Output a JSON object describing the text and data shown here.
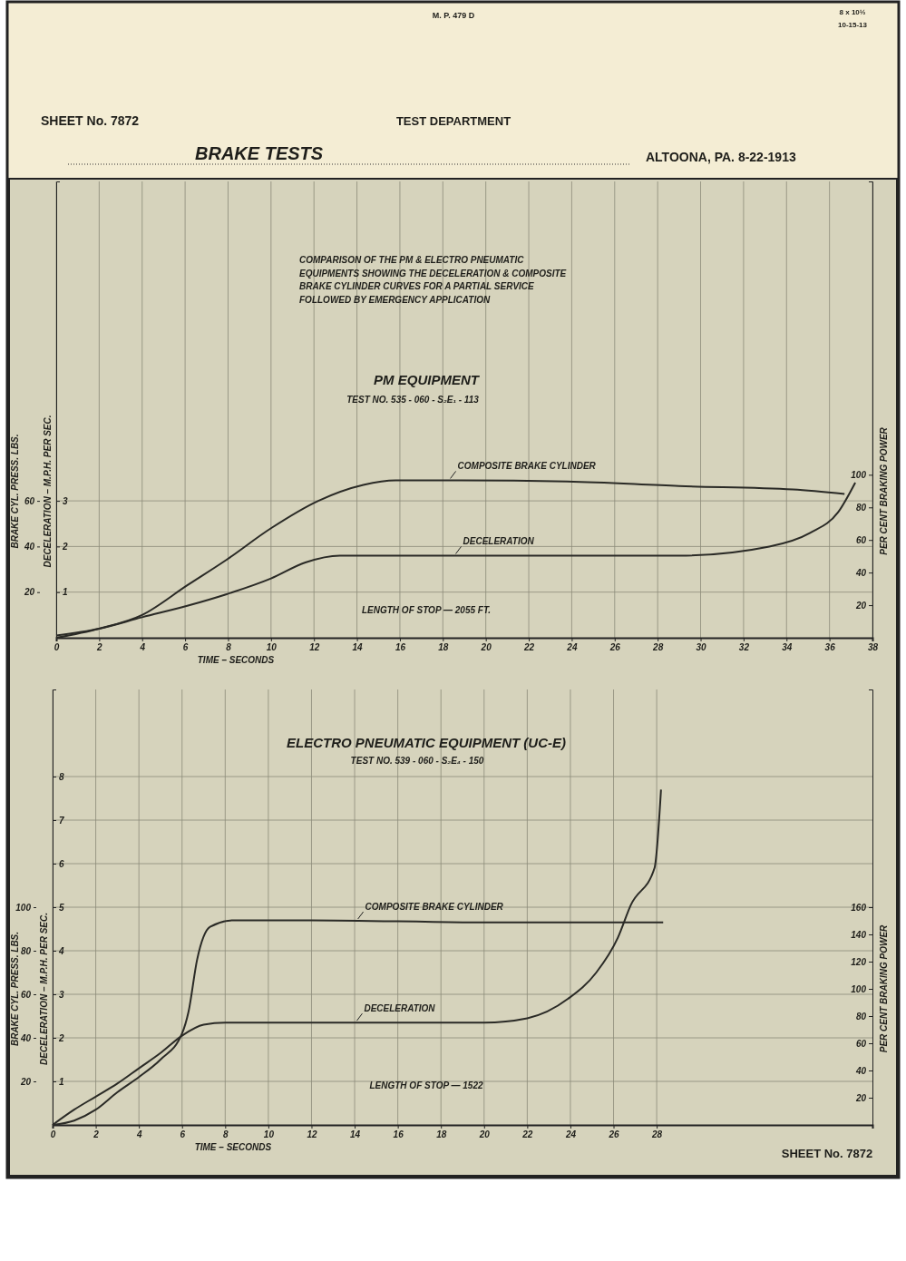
{
  "chart_data": [
    {
      "type": "line",
      "title": "BRAKE TESTS",
      "xlabel": "TIME – SECONDS",
      "ylabel": "DECELERATION – M.P.H. PER SEC.",
      "y2label": "BRAKE CYL. PRESS. LBS.",
      "y3label": "PER CENT BRAKING POWER",
      "xlim": [
        0,
        38
      ],
      "xticks": [
        0,
        2,
        4,
        6,
        8,
        10,
        12,
        14,
        16,
        18,
        20,
        22,
        24,
        26,
        28,
        30,
        32,
        34,
        36,
        38
      ],
      "ylim": [
        0,
        10
      ],
      "yticks": [
        1,
        2,
        3
      ],
      "y2lim": [
        0,
        200
      ],
      "y2ticks": [
        20,
        40,
        60
      ],
      "y3lim": [
        0,
        280
      ],
      "y3ticks": [
        20,
        40,
        60,
        80,
        100
      ],
      "grid": true,
      "series": [
        {
          "name": "COMPOSITE BRAKE CYLINDER",
          "color": "#2a2a26",
          "axis": "y2",
          "x": [
            0,
            2,
            4,
            6.1,
            7.9,
            10,
            12.2,
            14.3,
            15.8,
            18.5,
            23.8,
            29,
            34.3,
            36.7
          ],
          "values": [
            0,
            4,
            10,
            23,
            34,
            48,
            60,
            67,
            69,
            69,
            68.5,
            66.5,
            65,
            63
          ]
        },
        {
          "name": "DECELERATION",
          "color": "#2a2a26",
          "x": [
            0,
            2,
            4,
            6.1,
            7.9,
            10,
            11.6,
            13.2,
            18.5,
            29,
            33.2,
            35.1,
            36.4,
            37.2
          ],
          "values": [
            0.05,
            0.2,
            0.45,
            0.7,
            0.95,
            1.3,
            1.65,
            1.8,
            1.8,
            1.8,
            2,
            2.3,
            2.75,
            3.4
          ]
        }
      ],
      "annotations": [
        "M. P. 479 D",
        "8 x 10½",
        "10-15-13",
        "SHEET No. 7872",
        "TEST DEPARTMENT",
        "ALTOONA, PA. 8-22-1913",
        "COMPARISON OF THE PM & ELECTRO PNEUMATIC EQUIPMENTS SHOWING THE DECELERATION & COMPOSITE BRAKE CYLINDER CURVES FOR A PARTIAL SERVICE FOLLOWED BY EMERGENCY APPLICATION",
        "PM EQUIPMENT",
        "TEST NO. 535 - 060 - S₂E₁ - 113",
        "LENGTH OF STOP — 2055 FT."
      ]
    },
    {
      "type": "line",
      "title": "ELECTRO PNEUMATIC EQUIPMENT (UC-E)",
      "subtitle": "TEST NO. 539 - 060 - S₂E₄ - 150",
      "xlabel": "TIME – SECONDS",
      "ylabel": "DECELERATION – M.P.H. PER SEC.",
      "y2label": "BRAKE CYL. PRESS. LBS.",
      "y3label": "PER CENT BRAKING POWER",
      "xlim": [
        0,
        38
      ],
      "xticks": [
        0,
        2,
        4,
        6,
        8,
        10,
        12,
        14,
        16,
        18,
        20,
        22,
        24,
        26,
        28
      ],
      "ylim": [
        0,
        10
      ],
      "yticks": [
        1,
        2,
        3,
        4,
        5,
        6,
        7,
        8
      ],
      "y2lim": [
        0,
        200
      ],
      "y2ticks": [
        20,
        40,
        60,
        80,
        100
      ],
      "y3lim": [
        0,
        320
      ],
      "y3ticks": [
        20,
        40,
        60,
        80,
        100,
        120,
        140,
        160
      ],
      "grid": true,
      "series": [
        {
          "name": "COMPOSITE BRAKE CYLINDER",
          "color": "#2a2a26",
          "axis": "y2",
          "x": [
            0,
            1,
            2,
            3,
            4,
            5,
            6,
            6.3,
            6.7,
            7.3,
            8.4,
            12,
            20,
            28.3
          ],
          "values": [
            0,
            2,
            7,
            15,
            22,
            30,
            42,
            52,
            76,
            91,
            94,
            94,
            93,
            93
          ]
        },
        {
          "name": "DECELERATION",
          "color": "#2a2a26",
          "x": [
            0,
            1,
            2,
            3,
            4,
            5,
            6,
            7,
            8,
            12,
            20,
            22,
            23.9,
            25.2,
            26.2,
            26.8,
            27.9,
            28.2
          ],
          "values": [
            0,
            0.35,
            0.65,
            0.95,
            1.3,
            1.65,
            2.05,
            2.3,
            2.35,
            2.35,
            2.35,
            2.45,
            2.9,
            3.5,
            4.3,
            5.05,
            5.9,
            7.7
          ]
        }
      ],
      "annotations": [
        "LENGTH OF STOP — 1522",
        "SHEET No. 7872"
      ]
    }
  ]
}
